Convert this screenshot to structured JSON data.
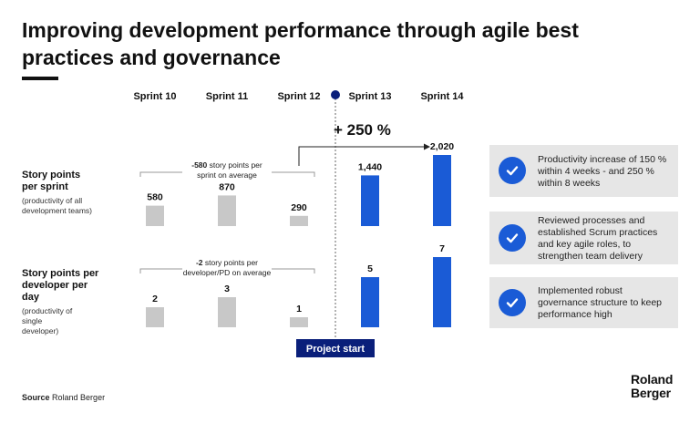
{
  "title": "Improving development performance through agile best practices and governance",
  "chart_data": {
    "type": "bar",
    "categories": [
      "Sprint 10",
      "Sprint 11",
      "Sprint 12",
      "Sprint 13",
      "Sprint 14"
    ],
    "marker_label": "Project start",
    "uplift_label": "+ 250 %",
    "panels": [
      {
        "name": "story-points-per-sprint",
        "label": "Story points per sprint",
        "sublabel": "(productivity of all development teams)",
        "values": [
          580,
          870,
          290,
          1440,
          2020
        ],
        "value_labels": [
          "580",
          "870",
          "290",
          "1,440",
          "2,020"
        ],
        "ymax": 2020,
        "bracket_bold": "-580",
        "bracket_line1": " story points per",
        "bracket_line2": "sprint on average"
      },
      {
        "name": "story-points-per-developer-per-day",
        "label": "Story points per developer per day",
        "sublabel": "(productivity of single developer)",
        "values": [
          2,
          3,
          1,
          5,
          7
        ],
        "value_labels": [
          "2",
          "3",
          "1",
          "5",
          "7"
        ],
        "ymax": 7,
        "bracket_bold": "-2",
        "bracket_line1": " story points per",
        "bracket_line2": "developer/PD on average"
      }
    ],
    "colors": {
      "before": "#c8c8c8",
      "after": "#1a5bd6",
      "marker": "#0a1f7a"
    }
  },
  "side_panels": [
    {
      "text": "Productivity increase of 150 % within 4 weeks - and 250 % within 8 weeks",
      "icon": "check-icon"
    },
    {
      "text": "Reviewed processes and established Scrum practices and key agile roles, to strengthen team delivery",
      "icon": "check-icon"
    },
    {
      "text": "Implemented robust governance structure to keep performance high",
      "icon": "check-icon"
    }
  ],
  "source_label": "Source",
  "source_value": "Roland Berger",
  "logo_line1": "Roland",
  "logo_line2": "Berger"
}
